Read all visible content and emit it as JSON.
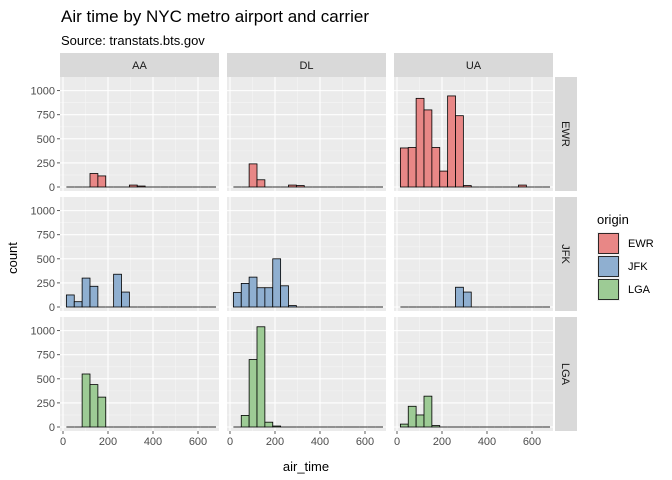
{
  "title": "Air time by NYC metro airport and carrier",
  "subtitle": "Source: transtats.bts.gov",
  "chart_data": {
    "type": "bar",
    "subtype": "faceted histogram",
    "xlabel": "air_time",
    "ylabel": "count",
    "xlim": [
      0,
      680
    ],
    "ylim": [
      0,
      1100
    ],
    "x_ticks": [
      0,
      200,
      400,
      600
    ],
    "y_ticks": [
      0,
      250,
      500,
      750,
      1000
    ],
    "bin_edges": [
      15,
      50,
      85,
      120,
      155,
      190,
      225,
      260,
      295,
      330,
      365,
      400,
      435,
      470,
      505,
      540,
      575,
      610,
      645,
      680
    ],
    "columns": [
      "AA",
      "DL",
      "UA"
    ],
    "rows": [
      "EWR",
      "JFK",
      "LGA"
    ],
    "grid": true,
    "legend": {
      "title": "origin",
      "position": "right",
      "items": [
        {
          "label": "EWR",
          "color": "#E88786"
        },
        {
          "label": "JFK",
          "color": "#8FAFD0"
        },
        {
          "label": "LGA",
          "color": "#9DCB95"
        }
      ]
    },
    "panels": [
      {
        "row": "EWR",
        "col": "AA",
        "counts": [
          0,
          0,
          0,
          140,
          115,
          0,
          0,
          0,
          20,
          10,
          0,
          0,
          0,
          0,
          0,
          0,
          0,
          0,
          0
        ]
      },
      {
        "row": "EWR",
        "col": "DL",
        "counts": [
          0,
          0,
          240,
          75,
          0,
          0,
          0,
          20,
          15,
          0,
          0,
          0,
          0,
          0,
          0,
          0,
          0,
          0,
          0
        ]
      },
      {
        "row": "EWR",
        "col": "UA",
        "counts": [
          405,
          410,
          920,
          800,
          410,
          165,
          945,
          740,
          15,
          0,
          0,
          0,
          0,
          0,
          0,
          20,
          0,
          0,
          0
        ]
      },
      {
        "row": "JFK",
        "col": "AA",
        "counts": [
          125,
          55,
          300,
          215,
          0,
          0,
          340,
          155,
          0,
          0,
          0,
          0,
          0,
          0,
          0,
          0,
          0,
          0,
          0
        ]
      },
      {
        "row": "JFK",
        "col": "DL",
        "counts": [
          150,
          245,
          310,
          200,
          200,
          500,
          220,
          15,
          0,
          0,
          0,
          0,
          0,
          0,
          0,
          0,
          0,
          0,
          0
        ]
      },
      {
        "row": "JFK",
        "col": "UA",
        "counts": [
          0,
          0,
          0,
          0,
          0,
          0,
          0,
          205,
          155,
          0,
          0,
          0,
          0,
          0,
          0,
          0,
          0,
          0,
          0
        ]
      },
      {
        "row": "LGA",
        "col": "AA",
        "counts": [
          0,
          0,
          550,
          440,
          310,
          0,
          0,
          0,
          0,
          0,
          0,
          0,
          0,
          0,
          0,
          0,
          0,
          0,
          0
        ]
      },
      {
        "row": "LGA",
        "col": "DL",
        "counts": [
          0,
          120,
          700,
          1040,
          50,
          10,
          0,
          0,
          0,
          0,
          0,
          0,
          0,
          0,
          0,
          0,
          0,
          0,
          0
        ]
      },
      {
        "row": "LGA",
        "col": "UA",
        "counts": [
          30,
          215,
          125,
          320,
          15,
          0,
          0,
          0,
          0,
          0,
          0,
          0,
          0,
          0,
          0,
          0,
          0,
          0,
          0
        ]
      }
    ]
  }
}
